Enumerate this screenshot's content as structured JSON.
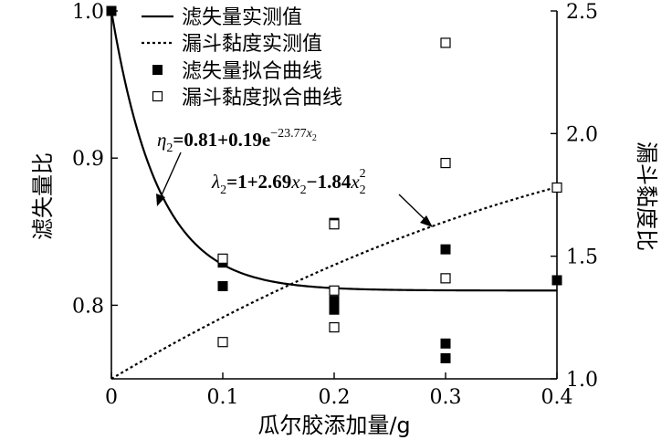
{
  "chart_data": {
    "type": "line",
    "xlabel": "瓜尔胶添加量/g",
    "ylabel_left": "滤失量比",
    "ylabel_right": "漏斗黏度比",
    "x_ticks": [
      "0",
      "0.1",
      "0.2",
      "0.3",
      "0.4"
    ],
    "y_left_ticks": [
      "0.8",
      "0.9",
      "1.0"
    ],
    "y_right_ticks": [
      "1.0",
      "1.5",
      "2.0",
      "2.5"
    ],
    "xlim": [
      0,
      0.4
    ],
    "ylim_left": [
      0.75,
      1.0
    ],
    "ylim_right": [
      1.0,
      2.5
    ],
    "legend_position": "top-center",
    "legend": [
      {
        "label": "滤失量实测值",
        "style": "solid-line"
      },
      {
        "label": "漏斗黏度实测值",
        "style": "dotted-line"
      },
      {
        "label": "滤失量拟合曲线",
        "style": "filled-square"
      },
      {
        "label": "漏斗黏度拟合曲线",
        "style": "open-square"
      }
    ],
    "series": [
      {
        "name": "滤失量拟合曲线",
        "marker": "filled-square",
        "axis": "left",
        "points": [
          [
            0,
            1.0
          ],
          [
            0.1,
            0.829
          ],
          [
            0.1,
            0.813
          ],
          [
            0.2,
            0.856
          ],
          [
            0.2,
            0.803
          ],
          [
            0.2,
            0.797
          ],
          [
            0.3,
            0.838
          ],
          [
            0.3,
            0.774
          ],
          [
            0.3,
            0.764
          ],
          [
            0.4,
            0.817
          ]
        ]
      },
      {
        "name": "漏斗黏度拟合曲线",
        "marker": "open-square",
        "axis": "right",
        "points": [
          [
            0.1,
            1.49
          ],
          [
            0.1,
            1.15
          ],
          [
            0.2,
            1.63
          ],
          [
            0.2,
            1.36
          ],
          [
            0.2,
            1.21
          ],
          [
            0.3,
            2.37
          ],
          [
            0.3,
            1.88
          ],
          [
            0.3,
            1.41
          ],
          [
            0.4,
            1.78
          ]
        ]
      },
      {
        "name": "滤失量实测值",
        "style": "solid-line",
        "axis": "left",
        "equation": {
          "a": 0.81,
          "b": 0.19,
          "k": -23.77
        }
      },
      {
        "name": "漏斗黏度实测值",
        "style": "dotted-line",
        "axis": "right",
        "equation": {
          "c0": 1,
          "c1": 2.69,
          "c2": -1.84
        }
      }
    ],
    "annotations": {
      "eta": {
        "var": "η",
        "sub": "2",
        "body": "=0.81+0.19e",
        "exp": "−23.77",
        "expvar": "x",
        "expsub": "2"
      },
      "lambda": {
        "var": "λ",
        "sub": "2",
        "body1": "=1+2.69",
        "x1": "x",
        "x1sub": "2",
        "body2": "−1.84",
        "x2": "x",
        "x2sub": "2",
        "x2sup": "2"
      }
    }
  }
}
